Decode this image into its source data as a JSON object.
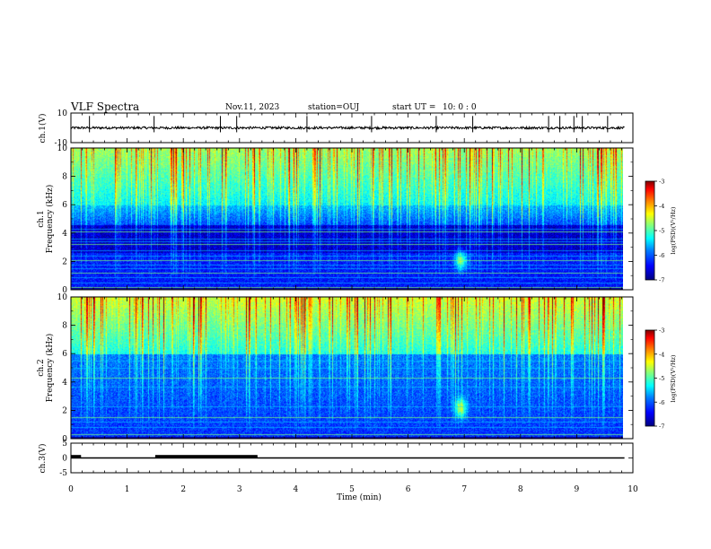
{
  "header": {
    "title": "VLF Spectra",
    "date": "Nov.11, 2023",
    "station": "station=OUJ",
    "start_label": "start  UT =",
    "start_time": "10: 0  : 0"
  },
  "colors": {
    "background": "#ffffff",
    "axes": "#000000",
    "colormap": [
      "#000080",
      "#0000ff",
      "#0080ff",
      "#00ffff",
      "#80ff80",
      "#ffff00",
      "#ff8000",
      "#ff0000",
      "#800000"
    ]
  },
  "chart_data": [
    {
      "type": "line",
      "id": "ch1-waveform",
      "ylabel": "ch.1(V)",
      "ylim": [
        -10,
        10
      ],
      "y_ticks": [
        "10",
        "-10"
      ],
      "xlim": [
        0,
        10
      ],
      "baseline": 0,
      "noise": 0.8,
      "spikes_min": [
        0.33,
        1.48,
        2.66,
        2.95,
        4.2,
        5.35,
        6.5,
        7.15,
        8.5,
        8.7,
        8.95,
        9.1,
        9.55
      ]
    },
    {
      "type": "heatmap",
      "id": "ch1-spectrogram",
      "ylabel": "ch.1",
      "ylabel2": "Frequency (kHz)",
      "ylim": [
        0,
        10
      ],
      "y_ticks": [
        "0",
        "2",
        "4",
        "6",
        "8",
        "10"
      ],
      "xlim": [
        0,
        9.85
      ],
      "colorbar": {
        "label": "log(PSD)(V²/Hz)",
        "range": [
          -7,
          -3
        ],
        "ticks": [
          "-3",
          "-4",
          "-5",
          "-6",
          "-7"
        ]
      },
      "lines_khz": [
        0.2,
        0.5,
        0.9,
        1.2,
        1.5,
        1.8,
        2.1,
        2.4,
        2.8,
        3.2,
        3.4,
        3.6,
        4.1,
        4.3
      ],
      "burst_time_min": 6.95,
      "burst_freq_khz": 2.1
    },
    {
      "type": "heatmap",
      "id": "ch2-spectrogram",
      "ylabel": "ch.2",
      "ylabel2": "Frequency (kHz)",
      "ylim": [
        0,
        10
      ],
      "y_ticks": [
        "0",
        "2",
        "4",
        "6",
        "8",
        "10"
      ],
      "xlim": [
        0,
        9.85
      ],
      "colorbar": {
        "label": "log(PSD)(V²/Hz)",
        "range": [
          -7,
          -3
        ],
        "ticks": [
          "-3",
          "-4",
          "-5",
          "-6",
          "-7"
        ]
      },
      "lines_khz": [
        0.3,
        0.8,
        1.2,
        1.5,
        2.3,
        3.7,
        4.3,
        5.0,
        5.5
      ],
      "burst_time_min": 6.95,
      "burst_freq_khz": 2.2
    },
    {
      "type": "line",
      "id": "ch3-signal",
      "ylabel": "ch.3(V)",
      "ylim": [
        -5,
        5
      ],
      "y_ticks": [
        "5",
        "0",
        "-5"
      ],
      "xlim": [
        0,
        10
      ],
      "level_v": 0,
      "pulses": [
        {
          "start_min": 0.0,
          "end_min": 0.18,
          "level_v": 0.5
        },
        {
          "start_min": 1.5,
          "end_min": 3.32,
          "level_v": 0.5
        }
      ],
      "end_min": 9.85
    }
  ],
  "x_axis": {
    "label": "Time (min)",
    "range": [
      0,
      10
    ],
    "ticks": [
      "0",
      "1",
      "2",
      "3",
      "4",
      "5",
      "6",
      "7",
      "8",
      "9",
      "10"
    ]
  }
}
